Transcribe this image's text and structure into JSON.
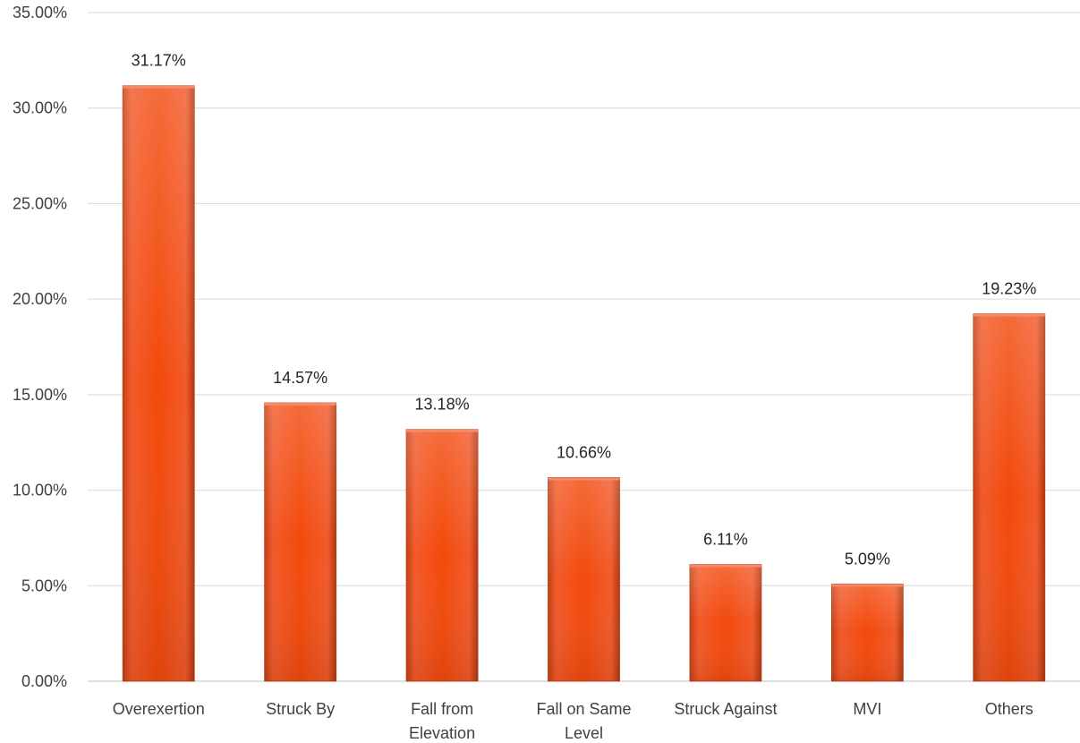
{
  "chart_data": {
    "type": "bar",
    "categories": [
      [
        "Overexertion"
      ],
      [
        "Struck By"
      ],
      [
        "Fall from",
        "Elevation"
      ],
      [
        "Fall on Same",
        "Level"
      ],
      [
        "Struck Against"
      ],
      [
        "MVI"
      ],
      [
        "Others"
      ]
    ],
    "values": [
      31.17,
      14.57,
      13.18,
      10.66,
      6.11,
      5.09,
      19.23
    ],
    "data_labels": [
      "31.17%",
      "14.57%",
      "13.18%",
      "10.66%",
      "6.11%",
      "5.09%",
      "19.23%"
    ],
    "y_ticks": [
      0,
      5,
      10,
      15,
      20,
      25,
      30,
      35
    ],
    "y_tick_labels": [
      "0.00%",
      "5.00%",
      "10.00%",
      "15.00%",
      "20.00%",
      "25.00%",
      "30.00%",
      "35.00%"
    ],
    "ylim": [
      0,
      35
    ],
    "grid": true,
    "legend": false,
    "title": "",
    "xlabel": "",
    "ylabel": "",
    "colors": {
      "bar_light": "#f26a4a",
      "bar_mid": "#f24a0c",
      "bar_dark": "#a8340e",
      "grid": "#d9d9d9"
    }
  }
}
